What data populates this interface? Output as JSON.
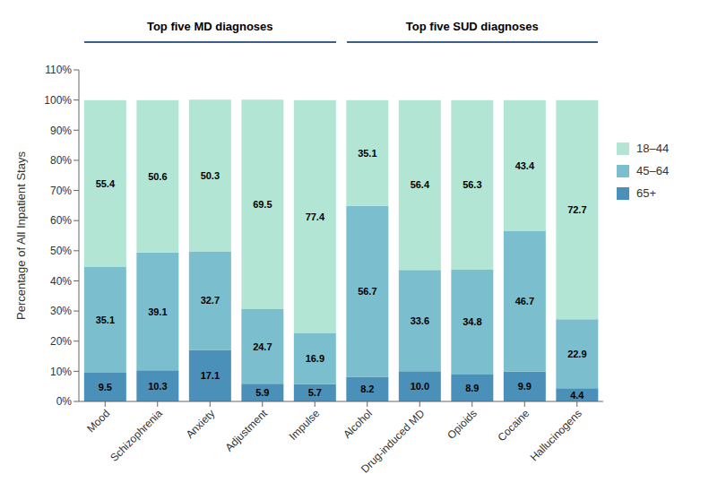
{
  "chart_data": {
    "type": "bar",
    "stacked": true,
    "data_labels": true,
    "grid": false,
    "legend": "right",
    "categories": [
      "Mood",
      "Schizophrenia",
      "Anxiety",
      "Adjustment",
      "Impulse",
      "Alcohol",
      "Drug-induced MD",
      "Opioids",
      "Cocaine",
      "Hallucinogens"
    ],
    "series": [
      {
        "name": "65+",
        "color": "#4A90B8",
        "values": [
          9.5,
          10.3,
          17.1,
          5.9,
          5.7,
          8.2,
          10.0,
          8.9,
          9.9,
          4.4
        ],
        "value_labels": [
          "9.5",
          "10.3",
          "17.1",
          "5.9",
          "5.7",
          "8.2",
          "10.0",
          "8.9",
          "9.9",
          "4.4"
        ]
      },
      {
        "name": "45–64",
        "color": "#7BBFCF",
        "values": [
          35.1,
          39.1,
          32.7,
          24.7,
          16.9,
          56.7,
          33.6,
          34.8,
          46.7,
          22.9
        ]
      },
      {
        "name": "18–44",
        "color": "#B2E5D4",
        "values": [
          55.4,
          50.6,
          50.3,
          69.5,
          77.4,
          35.1,
          56.4,
          56.3,
          43.4,
          72.7
        ]
      }
    ],
    "ylabel": "Percentage of All Inpatient Stays",
    "ylim": [
      0,
      110
    ],
    "yticks": [
      {
        "value": 0,
        "label": "0%"
      },
      {
        "value": 10,
        "label": "10%"
      },
      {
        "value": 20,
        "label": "20%"
      },
      {
        "value": 30,
        "label": "30%"
      },
      {
        "value": 40,
        "label": "40%"
      },
      {
        "value": 50,
        "label": "50%"
      },
      {
        "value": 60,
        "label": "60%"
      },
      {
        "value": 70,
        "label": "70%"
      },
      {
        "value": 80,
        "label": "80%"
      },
      {
        "value": 90,
        "label": "90%"
      },
      {
        "value": 100,
        "label": "100%"
      },
      {
        "value": 110,
        "label": "110%"
      }
    ],
    "annotations": [
      {
        "text": "Top five MD diagnoses",
        "color": "#3A5F8A",
        "categories": [
          "Mood",
          "Schizophrenia",
          "Anxiety",
          "Adjustment",
          "Impulse"
        ]
      },
      {
        "text": "Top five SUD diagnoses",
        "color": "#3A5F8A",
        "categories": [
          "Alcohol",
          "Drug-induced MD",
          "Opioids",
          "Cocaine",
          "Hallucinogens"
        ]
      }
    ]
  }
}
